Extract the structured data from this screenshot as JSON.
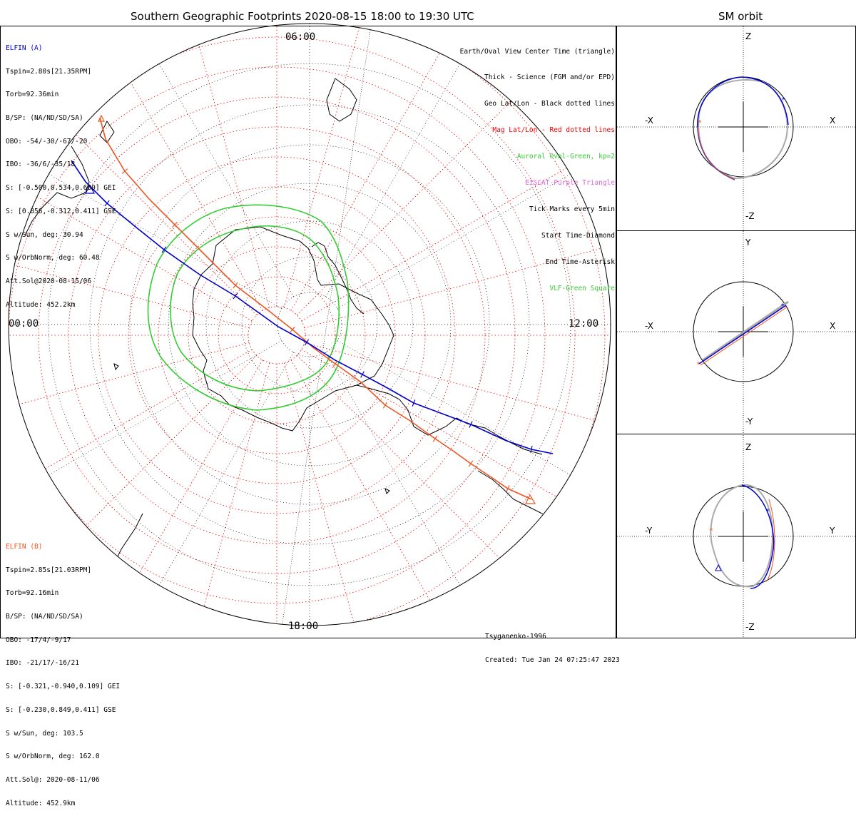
{
  "title": "Southern Geographic Footprints 2020-08-15 18:00 to 19:30 UTC",
  "sm_title": "SM orbit",
  "clock_labels": {
    "top": "06:00",
    "left": "00:00",
    "right": "12:00",
    "bottom": "18:00"
  },
  "elfin_a": {
    "name": "ELFIN (A)",
    "color": "#0000cc",
    "lines": [
      "Tspin=2.80s[21.35RPM]",
      "Torb=92.36min",
      "B/SP: (NA/ND/SD/SA)",
      "OBO: -54/-30/-67/-20",
      "IBO: -36/6/-35/18",
      "S: [-0.500,0.534,0.680] GEI",
      "S: [0.856,-0.312,0.411] GSE",
      "S w/Sun, deg: 30.94",
      "S w/OrbNorm, deg: 60.48",
      "Att.Sol@2020-08-15/06",
      "Altitude: 452.2km"
    ]
  },
  "elfin_b": {
    "name": "ELFIN (B)",
    "color": "#ee5522",
    "lines": [
      "Tspin=2.85s[21.03RPM]",
      "Torb=92.16min",
      "B/SP: (NA/ND/SD/SA)",
      "OBO: -17/4/-9/17",
      "IBO: -21/17/-16/21",
      "S: [-0.321,-0.940,0.109] GEI",
      "S: [-0.230,0.849,0.411] GSE",
      "S w/Sun, deg: 103.5",
      "S w/OrbNorm, deg: 162.0",
      "Att.Sol@: 2020-08-11/06",
      "Altitude: 452.9km"
    ]
  },
  "legend": [
    {
      "text": "Earth/Oval View Center Time (triangle)",
      "color": "#000000"
    },
    {
      "text": "Thick - Science (FGM and/or EPD)",
      "color": "#000000"
    },
    {
      "text": "Geo Lat/Lon - Black dotted lines",
      "color": "#000000"
    },
    {
      "text": "Mag Lat/Lon - Red dotted lines",
      "color": "#ee0000"
    },
    {
      "text": "Auroral Oval-Green, kp=2",
      "color": "#33cc33"
    },
    {
      "text": "EISCAT-Purple Triangle",
      "color": "#dd66dd"
    },
    {
      "text": "Tick Marks every 5min",
      "color": "#000000"
    },
    {
      "text": "Start Time-Diamond",
      "color": "#000000"
    },
    {
      "text": "End Time-Asterisk",
      "color": "#000000"
    },
    {
      "text": "VLF-Green Square",
      "color": "#33cc33"
    }
  ],
  "footer": {
    "model": "Tsyganenko-1996",
    "created": "Created: Tue Jan 24 07:25:47 2023"
  },
  "sm_panels": [
    {
      "top": "Z",
      "bottom": "-Z",
      "left": "-X",
      "right": "X"
    },
    {
      "top": "Y",
      "bottom": "-Y",
      "left": "-X",
      "right": "X"
    },
    {
      "top": "Z",
      "bottom": "-Z",
      "left": "-Y",
      "right": "Y"
    }
  ],
  "colors": {
    "elfin_a": "#0000cc",
    "elfin_b": "#ee5522",
    "auroral_oval": "#33cc33",
    "mag_grid": "#ee0000",
    "geo_grid": "#000000",
    "sm_orbit_gray": "#aaaaaa"
  }
}
